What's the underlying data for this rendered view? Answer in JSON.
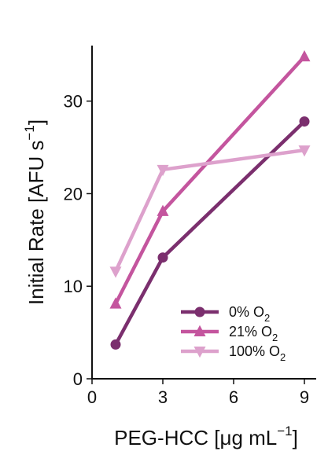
{
  "chart_data": {
    "type": "line",
    "title": "",
    "xlabel": {
      "main": "PEG-HCC [μg mL",
      "sup": "−1",
      "close": "]"
    },
    "ylabel": {
      "main": "Initial Rate [AFU s",
      "sup": "−1",
      "close": "]"
    },
    "xlim": [
      0,
      9.5
    ],
    "ylim": [
      0,
      36
    ],
    "xticks": [
      0,
      3,
      6,
      9
    ],
    "xtick_labels": [
      "0",
      "3",
      "6",
      "9"
    ],
    "yticks": [
      0,
      10,
      20,
      30
    ],
    "ytick_labels": [
      "0",
      "10",
      "20",
      "30"
    ],
    "grid": false,
    "legend_position": "bottom-right",
    "series": [
      {
        "name": "0% O2",
        "label_prefix": "0% O",
        "label_sub": "2",
        "color": "#7b2f6e",
        "marker": "circle",
        "x": [
          1,
          3,
          9
        ],
        "values": [
          3.7,
          13.1,
          27.8
        ]
      },
      {
        "name": "21% O2",
        "label_prefix": "21% O",
        "label_sub": "2",
        "color": "#c4559e",
        "marker": "triangle-up",
        "x": [
          1,
          3,
          9
        ],
        "values": [
          8.1,
          18.1,
          34.8
        ]
      },
      {
        "name": "100% O2",
        "label_prefix": "100% O",
        "label_sub": "2",
        "color": "#dda1cc",
        "marker": "triangle-down",
        "x": [
          1,
          3,
          9
        ],
        "values": [
          11.6,
          22.6,
          24.7
        ]
      }
    ]
  }
}
